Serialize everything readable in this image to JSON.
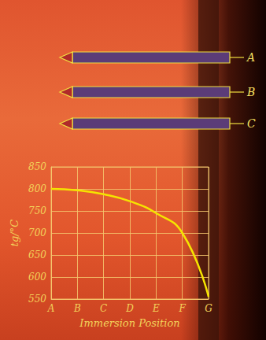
{
  "chart_data": {
    "type": "line",
    "x_label": "Immersion Position",
    "y_label": "tg/°C",
    "categories": [
      "A",
      "B",
      "C",
      "D",
      "E",
      "F",
      "G"
    ],
    "values": [
      800,
      797,
      788,
      772,
      745,
      700,
      555
    ],
    "color": "#f5e400",
    "marker": "none",
    "ylim": [
      550,
      850
    ],
    "yticks": [
      550,
      600,
      650,
      700,
      750,
      800,
      850
    ],
    "grid": true,
    "annotations": [
      "A",
      "B",
      "C"
    ]
  }
}
